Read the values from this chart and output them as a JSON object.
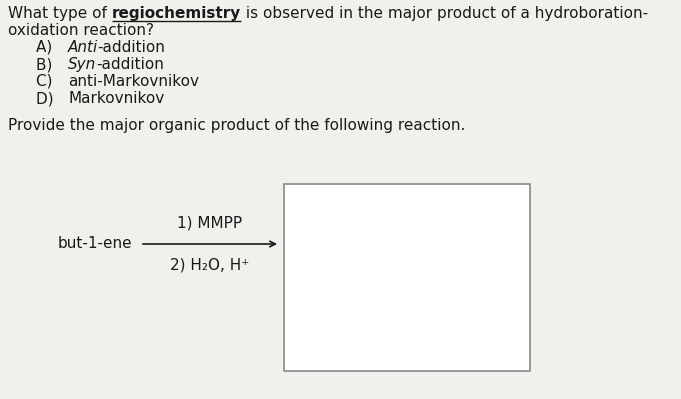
{
  "bg_color": "#f0f0ec",
  "text_color": "#1a1a1a",
  "q1_start": "What type of ",
  "q1_underline": "regiochemistry",
  "q1_end": " is observed in the major product of a hydroboration-",
  "q1_line2": "oxidation reaction?",
  "options": [
    [
      "A) ",
      "Anti",
      "-addition"
    ],
    [
      "B) ",
      "Syn",
      "-addition"
    ],
    [
      "C) ",
      "",
      "anti-Markovnikov"
    ],
    [
      "D) ",
      "",
      "Markovnikov"
    ]
  ],
  "q2": "Provide the major organic product of the following reaction.",
  "reactant": "but-1-ene",
  "reagent1": "1) MMPP",
  "reagent2": "2) H₂O, H⁺",
  "font_size": 11.0,
  "bg_white": "#ffffff",
  "box_edge_color": "#888888",
  "arrow_color": "#1a1a1a"
}
